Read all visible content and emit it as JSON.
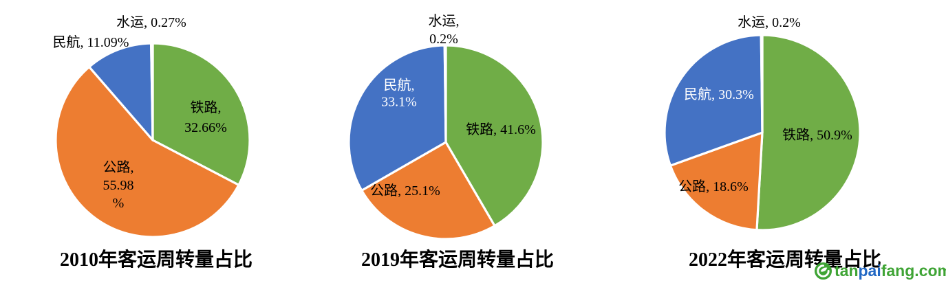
{
  "figure": {
    "description": "三张饼图：2010、2019、2022年客运周转量占比"
  },
  "chart_data": [
    {
      "type": "pie",
      "title": "2010年客运周转量占比",
      "categories": [
        "铁路",
        "公路",
        "民航",
        "水运"
      ],
      "values": [
        32.66,
        55.98,
        11.09,
        0.27
      ],
      "colors": [
        "#70AD47",
        "#ED7D31",
        "#4472C4",
        "#FFFFFF"
      ],
      "start_angle_deg": 0,
      "direction": "clockwise",
      "legend": "none",
      "labels": {
        "tielu": "铁路,\n32.66%",
        "gonglu": "公路,\n55.98\n%",
        "minhang": "民航, 11.09%",
        "shuiyun": "水运, 0.27%"
      }
    },
    {
      "type": "pie",
      "title": "2019年客运周转量占比",
      "categories": [
        "铁路",
        "公路",
        "民航",
        "水运"
      ],
      "values": [
        41.6,
        25.1,
        33.1,
        0.2
      ],
      "colors": [
        "#70AD47",
        "#ED7D31",
        "#4472C4",
        "#FFFFFF"
      ],
      "start_angle_deg": 0,
      "direction": "clockwise",
      "legend": "none",
      "labels": {
        "tielu": "铁路, 41.6%",
        "gonglu": "公路, 25.1%",
        "minhang": "民航,\n33.1%",
        "shuiyun": "水运,\n0.2%"
      }
    },
    {
      "type": "pie",
      "title": "2022年客运周转量占比",
      "categories": [
        "铁路",
        "公路",
        "民航",
        "水运"
      ],
      "values": [
        50.9,
        18.6,
        30.3,
        0.2
      ],
      "colors": [
        "#70AD47",
        "#ED7D31",
        "#4472C4",
        "#FFFFFF"
      ],
      "start_angle_deg": 0,
      "direction": "clockwise",
      "legend": "none",
      "labels": {
        "tielu": "铁路, 50.9%",
        "gonglu": "公路, 18.6%",
        "minhang": "民航, 30.3%",
        "shuiyun": "水运, 0.2%"
      }
    }
  ],
  "watermark": {
    "tan": "tan",
    "pai": "pai",
    "fang": "fang.com",
    "green": "#3FA435",
    "blue": "#2268C4",
    "icon": "tanpaifang-logo-icon"
  }
}
